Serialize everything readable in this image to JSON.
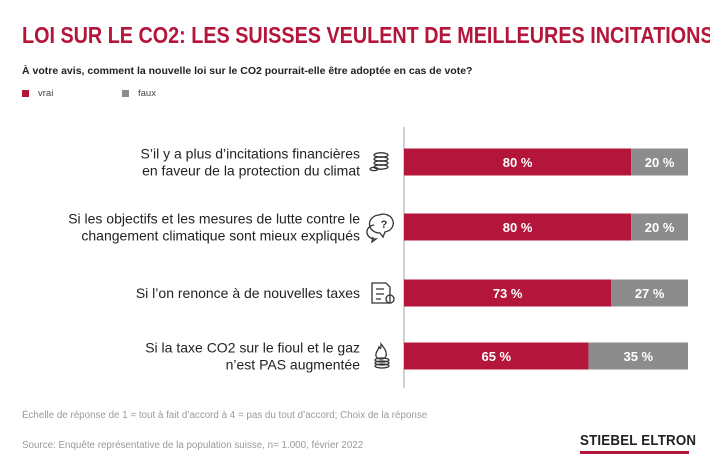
{
  "title": "LOI SUR LE CO2: LES SUISSES VEULENT DE MEILLEURES INCITATIONS",
  "question": "À votre avis, comment la nouvelle loi sur le CO2 pourrait-elle être adoptée en cas de vote?",
  "footnote": "Échelle de réponse de 1 = tout à fait d’accord à 4 = pas du tout d’accord; Choix de la réponse",
  "source": "Source: Enquête représentative de la population suisse, n= 1.000, février 2022",
  "logo": "STIEBEL ELTRON",
  "colors": {
    "vrai": "#b3163a",
    "faux": "#8c8c8c",
    "title": "#b3163a"
  },
  "chart_data": {
    "type": "bar",
    "orientation": "horizontal",
    "stacked": true,
    "categories": [
      [
        "S’il y a plus d’incitations financières",
        "en faveur de la protection du climat"
      ],
      [
        "Si les objectifs et les mesures de lutte contre le",
        "changement climatique sont mieux expliqués"
      ],
      [
        "Si l’on renonce à de nouvelles taxes"
      ],
      [
        "Si la taxe CO2 sur le fioul et le gaz",
        "n’est PAS augmentée"
      ]
    ],
    "category_icons": [
      "coins-icon",
      "question-bubbles-icon",
      "tax-document-icon",
      "gas-flame-coins-icon"
    ],
    "series": [
      {
        "name": "vrai",
        "values": [
          80,
          80,
          73,
          65
        ],
        "labels": [
          "80 %",
          "80 %",
          "73 %",
          "65 %"
        ]
      },
      {
        "name": "faux",
        "values": [
          20,
          20,
          27,
          35
        ],
        "labels": [
          "20 %",
          "20 %",
          "27 %",
          "35 %"
        ]
      }
    ],
    "xlim": [
      0,
      100
    ],
    "legend": "top-left"
  }
}
